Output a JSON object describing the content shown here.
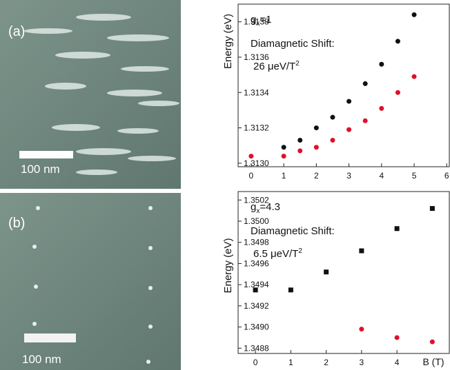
{
  "images": [
    {
      "label": "(a)",
      "scale_bar": "100 nm"
    },
    {
      "label": "(b)",
      "scale_bar": "100 nm"
    }
  ],
  "chart_data": [
    {
      "type": "scatter",
      "ylabel": "Energy (eV)",
      "annotation_g": {
        "base": "g",
        "sub": "x",
        "rest": "=1"
      },
      "annotation_shift": {
        "label": "Diamagnetic Shift:",
        "value": "26 μeV/T",
        "sup": "2"
      },
      "xlim": [
        -0.4,
        6.1
      ],
      "xticks": [
        0,
        1,
        2,
        3,
        4,
        5,
        6
      ],
      "ylim": [
        1.31298,
        1.3139
      ],
      "yticks": [
        {
          "value": 1.313,
          "label": "1.3130"
        },
        1.3132,
        1.3134,
        1.3136,
        1.3138
      ],
      "series": [
        {
          "color": "#111111",
          "marker": "circle",
          "x": [
            1,
            1.5,
            2,
            2.5,
            3,
            3.5,
            4,
            4.5,
            5
          ],
          "values": [
            1.31309,
            1.31313,
            1.3132,
            1.31326,
            1.31335,
            1.31345,
            1.31356,
            1.31369,
            1.31384
          ]
        },
        {
          "color": "#e0102a",
          "marker": "circle",
          "x": [
            0,
            1,
            1.5,
            2,
            2.5,
            3,
            3.5,
            4,
            4.5,
            5
          ],
          "values": [
            1.31304,
            1.31304,
            1.31307,
            1.31309,
            1.31313,
            1.31319,
            1.31324,
            1.31331,
            1.3134,
            1.31349
          ]
        }
      ]
    },
    {
      "type": "scatter",
      "ylabel": "Energy (eV)",
      "xlabel": "B (T)",
      "annotation_g": {
        "base": "g",
        "sub": "x",
        "rest": "=4.3"
      },
      "annotation_shift": {
        "label": "Diamagnetic Shift:",
        "value": "6.5 μeV/T",
        "sup": "2"
      },
      "xlim": [
        -0.49,
        5.5
      ],
      "xticks": [
        0,
        1,
        2,
        3,
        4
      ],
      "ylim": [
        1.34875,
        1.35028
      ],
      "yticks": [
        1.3488,
        {
          "value": 1.349,
          "label": "1.3490"
        },
        1.3492,
        1.3494,
        1.3496,
        1.3498,
        {
          "value": 1.35,
          "label": "1.3500"
        },
        1.3502
      ],
      "series": [
        {
          "color": "#111111",
          "marker": "square",
          "x": [
            0,
            1,
            2,
            3,
            4,
            5
          ],
          "values": [
            1.34935,
            1.34935,
            1.34952,
            1.34972,
            1.34993,
            1.35012
          ]
        },
        {
          "color": "#e0102a",
          "marker": "circle",
          "x": [
            3,
            4,
            5
          ],
          "values": [
            1.34898,
            1.3489,
            1.34886
          ]
        }
      ]
    }
  ]
}
